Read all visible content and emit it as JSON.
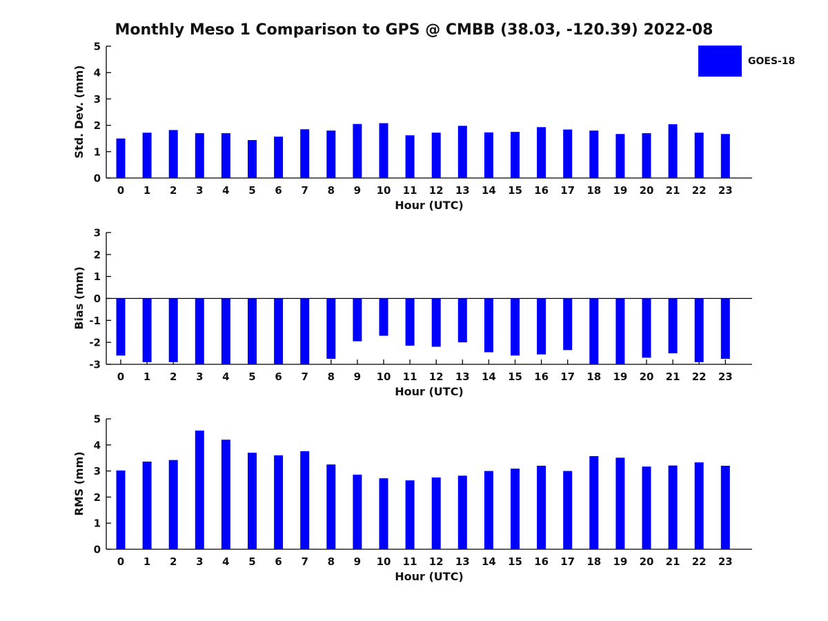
{
  "title": "Monthly Meso 1 Comparison to GPS @ CMBB (38.03, -120.39) 2022-08",
  "legend": {
    "label": "GOES-18",
    "color": "#0000ff",
    "position": "upper right"
  },
  "colors": {
    "bar": "#0000ff",
    "axis": "#000000",
    "text": "#111111",
    "background": "#ffffff"
  },
  "chart_data": [
    {
      "type": "bar",
      "panel": "std-dev",
      "ylabel": "Std. Dev. (mm)",
      "xlabel": "Hour (UTC)",
      "ylim": [
        0,
        5
      ],
      "yticks": [
        0,
        1,
        2,
        3,
        4,
        5
      ],
      "grid": false,
      "categories": [
        "0",
        "1",
        "2",
        "3",
        "4",
        "5",
        "6",
        "7",
        "8",
        "9",
        "10",
        "11",
        "12",
        "13",
        "14",
        "15",
        "16",
        "17",
        "18",
        "19",
        "20",
        "21",
        "22",
        "23"
      ],
      "series": [
        {
          "name": "GOES-18",
          "values": [
            1.5,
            1.72,
            1.82,
            1.7,
            1.7,
            1.44,
            1.57,
            1.85,
            1.8,
            2.05,
            2.08,
            1.62,
            1.72,
            1.98,
            1.73,
            1.75,
            1.93,
            1.84,
            1.8,
            1.67,
            1.7,
            2.04,
            1.72,
            1.67
          ]
        }
      ]
    },
    {
      "type": "bar",
      "panel": "bias",
      "ylabel": "Bias (mm)",
      "xlabel": "Hour (UTC)",
      "ylim": [
        -3,
        3
      ],
      "yticks": [
        -3,
        -2,
        -1,
        0,
        1,
        2,
        3
      ],
      "grid": false,
      "categories": [
        "0",
        "1",
        "2",
        "3",
        "4",
        "5",
        "6",
        "7",
        "8",
        "9",
        "10",
        "11",
        "12",
        "13",
        "14",
        "15",
        "16",
        "17",
        "18",
        "19",
        "20",
        "21",
        "22",
        "23"
      ],
      "series": [
        {
          "name": "GOES-18",
          "values": [
            -2.6,
            -2.9,
            -2.9,
            -3.0,
            -3.0,
            -3.0,
            -3.0,
            -3.0,
            -2.75,
            -1.95,
            -1.7,
            -2.15,
            -2.2,
            -2.0,
            -2.45,
            -2.6,
            -2.55,
            -2.35,
            -3.0,
            -3.0,
            -2.7,
            -2.5,
            -2.9,
            -2.75
          ]
        }
      ]
    },
    {
      "type": "bar",
      "panel": "rms",
      "ylabel": "RMS (mm)",
      "xlabel": "Hour (UTC)",
      "ylim": [
        0,
        5
      ],
      "yticks": [
        0,
        1,
        2,
        3,
        4,
        5
      ],
      "grid": false,
      "categories": [
        "0",
        "1",
        "2",
        "3",
        "4",
        "5",
        "6",
        "7",
        "8",
        "9",
        "10",
        "11",
        "12",
        "13",
        "14",
        "15",
        "16",
        "17",
        "18",
        "19",
        "20",
        "21",
        "22",
        "23"
      ],
      "series": [
        {
          "name": "GOES-18",
          "values": [
            3.02,
            3.36,
            3.42,
            4.55,
            4.2,
            3.7,
            3.6,
            3.76,
            3.25,
            2.86,
            2.72,
            2.64,
            2.75,
            2.82,
            3.0,
            3.09,
            3.2,
            3.0,
            3.57,
            3.51,
            3.17,
            3.21,
            3.33,
            3.2
          ]
        }
      ]
    }
  ]
}
